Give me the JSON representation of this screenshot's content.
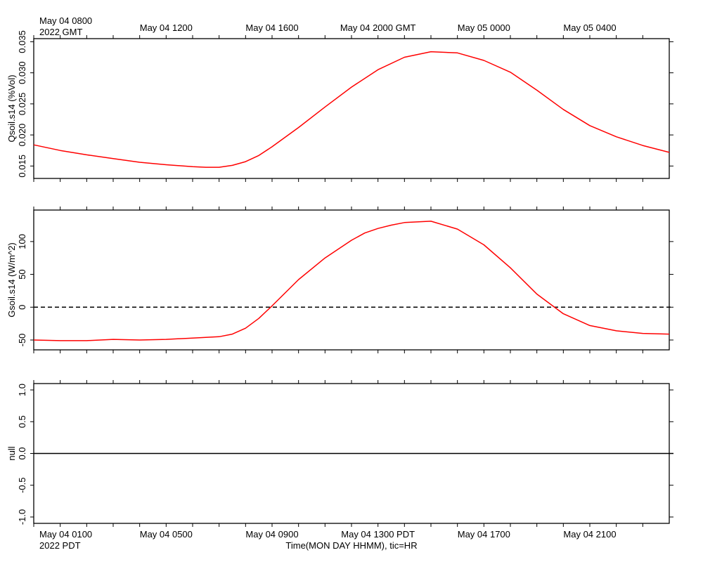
{
  "top_labels": {
    "start_line1": "May 04 0800",
    "start_line2": "2022 GMT",
    "ticks": [
      "May 04 1200",
      "May 04 1600",
      "May 04 2000 GMT",
      "May 05 0000",
      "May 05 0400"
    ]
  },
  "bottom_labels": {
    "start_line1": "May 04 0100",
    "start_line2": "2022 PDT",
    "ticks": [
      "May 04 0500",
      "May 04 0900",
      "May 04 1300 PDT",
      "May 04 1700",
      "May 04 2100"
    ],
    "axis_title": "Time(MON DAY HHMM), tic=HR"
  },
  "colors": {
    "series": "#ff0000",
    "axes": "#000000",
    "background": "#ffffff"
  },
  "chart_data": [
    {
      "type": "line",
      "ylabel": "Qsoil.s14 (%Vol)",
      "ylim": [
        0.013,
        0.0355
      ],
      "yticks": [
        0.015,
        0.02,
        0.025,
        0.03,
        0.035
      ],
      "ytick_labels": [
        "0.015",
        "0.020",
        "0.025",
        "0.030",
        "0.035"
      ],
      "xlim_hours_pdt": [
        0.0,
        24.0
      ],
      "x_hours_pdt": [
        0,
        1,
        2,
        3,
        4,
        5,
        6,
        6.5,
        7,
        7.5,
        8,
        8.5,
        9,
        10,
        11,
        12,
        13,
        14,
        15,
        16,
        17,
        18,
        19,
        20,
        21,
        22,
        23,
        24
      ],
      "series": [
        {
          "values": [
            0.0184,
            0.0175,
            0.0168,
            0.0162,
            0.0156,
            0.0152,
            0.0149,
            0.0148,
            0.0148,
            0.0151,
            0.0157,
            0.0167,
            0.0181,
            0.0212,
            0.0245,
            0.0277,
            0.0305,
            0.0325,
            0.0334,
            0.0332,
            0.032,
            0.0301,
            0.0272,
            0.0241,
            0.0215,
            0.0197,
            0.0183,
            0.0172
          ]
        }
      ],
      "grid": false
    },
    {
      "type": "line",
      "ylabel": "Gsoil.s14 (W/m^2)",
      "ylim": [
        -65,
        148
      ],
      "yticks": [
        -50,
        0,
        50,
        100
      ],
      "ytick_labels": [
        "-50",
        "0",
        "50",
        "100"
      ],
      "reference_line": 0,
      "xlim_hours_pdt": [
        0.0,
        24.0
      ],
      "x_hours_pdt": [
        0,
        1,
        2,
        3,
        4,
        5,
        6,
        6.5,
        7,
        7.5,
        8,
        8.5,
        9,
        10,
        11,
        12,
        12.5,
        13,
        13.5,
        14,
        15,
        16,
        17,
        18,
        19,
        20,
        21,
        22,
        23,
        24
      ],
      "series": [
        {
          "values": [
            -50,
            -51,
            -51,
            -49,
            -50,
            -49,
            -47,
            -46,
            -45,
            -41,
            -32,
            -17,
            2,
            42,
            75,
            102,
            113,
            120,
            125,
            129,
            131,
            119,
            95,
            60,
            20,
            -10,
            -28,
            -36,
            -40,
            -41
          ]
        }
      ],
      "grid": false
    },
    {
      "type": "line",
      "ylabel": "null",
      "ylim": [
        -1.1,
        1.1
      ],
      "yticks": [
        -1.0,
        -0.5,
        0.0,
        0.5,
        1.0
      ],
      "ytick_labels": [
        "-1.0",
        "-0.5",
        "0.0",
        "0.5",
        "1.0"
      ],
      "reference_line": 0,
      "xlim_hours_pdt": [
        0.0,
        24.0
      ],
      "series": [],
      "grid": false
    }
  ]
}
